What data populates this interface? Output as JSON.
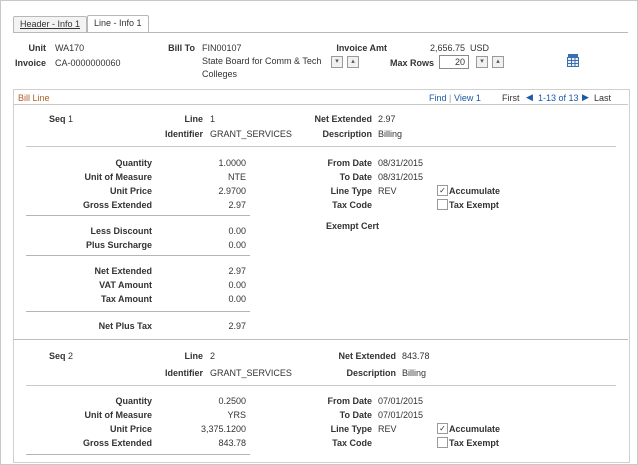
{
  "tabs": [
    {
      "label": "Header - Info 1",
      "active": false
    },
    {
      "label": "Line - Info 1",
      "active": true
    }
  ],
  "header": {
    "unit_label": "Unit",
    "unit_value": "WA170",
    "invoice_label": "Invoice",
    "invoice_value": "CA-0000000060",
    "bill_to_label": "Bill To",
    "bill_to_value": "FIN00107",
    "bill_to_name_line1": "State Board for Comm & Tech",
    "bill_to_name_line2": "Colleges",
    "invoice_amt_label": "Invoice Amt",
    "invoice_amt_value": "2,656.75",
    "currency": "USD",
    "max_rows_label": "Max Rows",
    "max_rows_value": "20"
  },
  "bill_line": {
    "title": "Bill Line",
    "find": "Find",
    "view": "View 1",
    "first": "First",
    "range": "1-13 of 13",
    "last": "Last"
  },
  "lines": [
    {
      "seq_label": "Seq",
      "seq": "1",
      "line_label": "Line",
      "line": "1",
      "net_extended_label": "Net Extended",
      "net_extended_top": "2.97",
      "identifier_label": "Identifier",
      "identifier": "GRANT_SERVICES",
      "description_label": "Description",
      "description": "Billing",
      "quantity_label": "Quantity",
      "quantity": "1.0000",
      "uom_label": "Unit of Measure",
      "uom": "NTE",
      "unit_price_label": "Unit Price",
      "unit_price": "2.9700",
      "gross_extended_label": "Gross Extended",
      "gross_extended": "2.97",
      "from_date_label": "From Date",
      "from_date": "08/31/2015",
      "to_date_label": "To Date",
      "to_date": "08/31/2015",
      "line_type_label": "Line Type",
      "line_type": "REV",
      "tax_code_label": "Tax Code",
      "accumulate_label": "Accumulate",
      "accumulate_checked": true,
      "tax_exempt_label": "Tax Exempt",
      "tax_exempt_checked": false,
      "less_discount_label": "Less Discount",
      "less_discount": "0.00",
      "plus_surcharge_label": "Plus Surcharge",
      "plus_surcharge": "0.00",
      "exempt_cert_label": "Exempt Cert",
      "net_extended_label2": "Net Extended",
      "net_extended": "2.97",
      "vat_amount_label": "VAT Amount",
      "vat_amount": "0.00",
      "tax_amount_label": "Tax Amount",
      "tax_amount": "0.00",
      "net_plus_tax_label": "Net Plus Tax",
      "net_plus_tax": "2.97"
    },
    {
      "seq_label": "Seq",
      "seq": "2",
      "line_label": "Line",
      "line": "2",
      "net_extended_label": "Net Extended",
      "net_extended_top": "843.78",
      "identifier_label": "Identifier",
      "identifier": "GRANT_SERVICES",
      "description_label": "Description",
      "description": "Billing",
      "quantity_label": "Quantity",
      "quantity": "0.2500",
      "uom_label": "Unit of Measure",
      "uom": "YRS",
      "unit_price_label": "Unit Price",
      "unit_price": "3,375.1200",
      "gross_extended_label": "Gross Extended",
      "gross_extended": "843.78",
      "from_date_label": "From Date",
      "from_date": "07/01/2015",
      "to_date_label": "To Date",
      "to_date": "07/01/2015",
      "line_type_label": "Line Type",
      "line_type": "REV",
      "tax_code_label": "Tax Code",
      "accumulate_label": "Accumulate",
      "accumulate_checked": true,
      "tax_exempt_label": "Tax Exempt",
      "tax_exempt_checked": false
    }
  ],
  "icons": {
    "prompt_down": "▾",
    "prompt_up": "▴",
    "spreadsheet": "spreadsheet-icon",
    "check": "✓"
  },
  "colors": {
    "link": "#1a5aa6",
    "section_title": "#b0602a"
  }
}
